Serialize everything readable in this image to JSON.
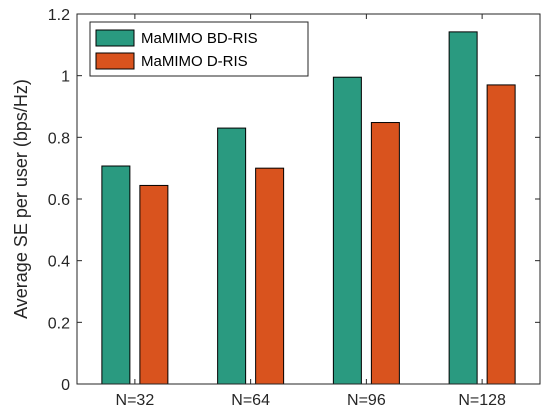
{
  "chart_data": {
    "type": "bar",
    "categories": [
      "N=32",
      "N=64",
      "N=96",
      "N=128"
    ],
    "series": [
      {
        "name": "MaMIMO BD-RIS",
        "color": "#2a9a80",
        "values": [
          0.707,
          0.83,
          0.995,
          1.142
        ]
      },
      {
        "name": "MaMIMO D-RIS",
        "color": "#d9531e",
        "values": [
          0.644,
          0.7,
          0.848,
          0.97
        ]
      }
    ],
    "title": "",
    "xlabel": "",
    "ylabel": "Average SE per user (bps/Hz)",
    "ylim": [
      0,
      1.2
    ],
    "yticks": [
      "0",
      "0.2",
      "0.4",
      "0.6",
      "0.8",
      "1",
      "1.2"
    ],
    "grid": false,
    "legend_position": "top-left"
  }
}
